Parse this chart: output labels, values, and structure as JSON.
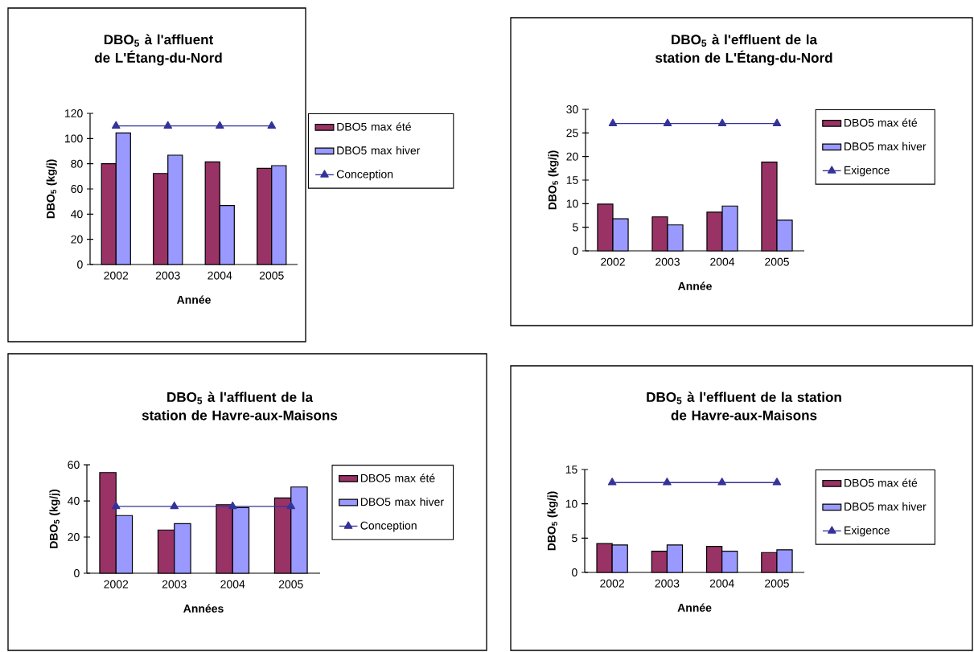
{
  "chart_data": [
    {
      "type": "bar",
      "title": "DBO$_{5}$ à l'affluent de L'Étang-du-Nord",
      "xlabel": "Année",
      "ylabel": "DBO$_{5}$ (kg/j)",
      "categories": [
        "2002",
        "2003",
        "2004",
        "2005"
      ],
      "ylim": [
        0,
        120
      ],
      "yticks": [
        0,
        20,
        40,
        60,
        80,
        100,
        120
      ],
      "legend": "right",
      "series": [
        {
          "name": "DBO5 max été",
          "color": "#993366",
          "values": [
            80,
            72.3,
            81.5,
            76.4
          ]
        },
        {
          "name": "DBO5 max hiver",
          "color": "#9999ff",
          "values": [
            104.5,
            86.8,
            46.8,
            78.5
          ]
        },
        {
          "name": "Conception",
          "type": "line",
          "color": "#333399",
          "marker": "triangle",
          "values": [
            110,
            110,
            110,
            110
          ]
        }
      ]
    },
    {
      "type": "bar",
      "title": "DBO$_{5}$ à l'effluent de la station de L'Étang-du-Nord",
      "xlabel": "Année",
      "ylabel": "DBO$_{5}$ (kg/j)",
      "categories": [
        "2002",
        "2003",
        "2004",
        "2005"
      ],
      "ylim": [
        0,
        30
      ],
      "yticks": [
        0,
        5,
        10,
        15,
        20,
        25,
        30
      ],
      "legend": "right",
      "series": [
        {
          "name": "DBO5 max été",
          "color": "#993366",
          "values": [
            9.9,
            7.2,
            8.2,
            18.8
          ]
        },
        {
          "name": "DBO5 max hiver",
          "color": "#9999ff",
          "values": [
            6.8,
            5.5,
            9.5,
            6.5
          ]
        },
        {
          "name": "Exigence",
          "type": "line",
          "color": "#333399",
          "marker": "triangle",
          "values": [
            27,
            27,
            27,
            27
          ]
        }
      ]
    },
    {
      "type": "bar",
      "title": "DBO$_{5}$ à l'affluent de la station de Havre-aux-Maisons",
      "xlabel": "Années",
      "ylabel": "DBO$_{5}$ (kg/j)",
      "categories": [
        "2002",
        "2003",
        "2004",
        "2005"
      ],
      "ylim": [
        0,
        60
      ],
      "yticks": [
        0,
        20,
        40,
        60
      ],
      "legend": "right",
      "series": [
        {
          "name": "DBO5 max été",
          "color": "#993366",
          "values": [
            55.7,
            23.9,
            37.9,
            41.6
          ]
        },
        {
          "name": "DBO5 max hiver",
          "color": "#9999ff",
          "values": [
            31.9,
            27.4,
            36.3,
            47.7
          ]
        },
        {
          "name": "Conception",
          "type": "line",
          "color": "#333399",
          "marker": "triangle",
          "values": [
            37,
            37,
            37,
            37
          ]
        }
      ]
    },
    {
      "type": "bar",
      "title": "DBO$_{5}$ à l'effluent de la station de Havre-aux-Maisons",
      "xlabel": "Année",
      "ylabel": "DBO$_{5}$ (kg/j)",
      "categories": [
        "2002",
        "2003",
        "2004",
        "2005"
      ],
      "ylim": [
        0,
        15
      ],
      "yticks": [
        0,
        5,
        10,
        15
      ],
      "legend": "right",
      "series": [
        {
          "name": "DBO5 max été",
          "color": "#993366",
          "values": [
            4.2,
            3.1,
            3.8,
            2.9
          ]
        },
        {
          "name": "DBO5 max hiver",
          "color": "#9999ff",
          "values": [
            4.0,
            4.0,
            3.1,
            3.3
          ]
        },
        {
          "name": "Exigence",
          "type": "line",
          "color": "#333399",
          "marker": "triangle",
          "values": [
            13.1,
            13.1,
            13.1,
            13.1
          ]
        }
      ]
    }
  ]
}
